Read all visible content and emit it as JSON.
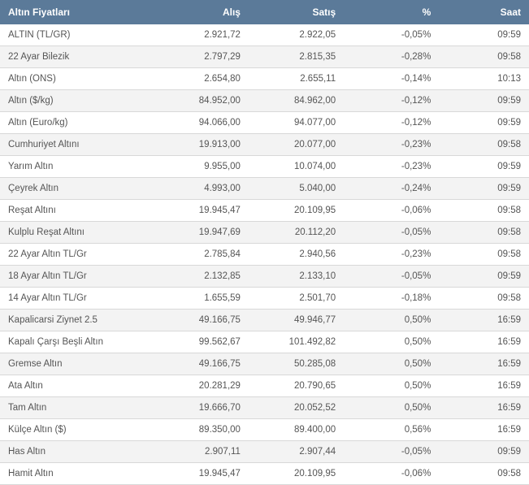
{
  "table": {
    "header_bg": "#5b7a99",
    "header_fg": "#ffffff",
    "row_odd_bg": "#ffffff",
    "row_even_bg": "#f3f3f3",
    "border_color": "#d8d8d8",
    "text_color": "#555555",
    "font_size": 12,
    "columns": [
      {
        "key": "name",
        "label": "Altın Fiyatları",
        "align": "left"
      },
      {
        "key": "alis",
        "label": "Alış",
        "align": "right"
      },
      {
        "key": "satis",
        "label": "Satış",
        "align": "right"
      },
      {
        "key": "pct",
        "label": "%",
        "align": "right"
      },
      {
        "key": "saat",
        "label": "Saat",
        "align": "right"
      }
    ],
    "rows": [
      {
        "name": "ALTIN (TL/GR)",
        "alis": "2.921,72",
        "satis": "2.922,05",
        "pct": "-0,05%",
        "saat": "09:59"
      },
      {
        "name": "22 Ayar Bilezik",
        "alis": "2.797,29",
        "satis": "2.815,35",
        "pct": "-0,28%",
        "saat": "09:58"
      },
      {
        "name": "Altın (ONS)",
        "alis": "2.654,80",
        "satis": "2.655,11",
        "pct": "-0,14%",
        "saat": "10:13"
      },
      {
        "name": "Altın ($/kg)",
        "alis": "84.952,00",
        "satis": "84.962,00",
        "pct": "-0,12%",
        "saat": "09:59"
      },
      {
        "name": "Altın (Euro/kg)",
        "alis": "94.066,00",
        "satis": "94.077,00",
        "pct": "-0,12%",
        "saat": "09:59"
      },
      {
        "name": "Cumhuriyet Altını",
        "alis": "19.913,00",
        "satis": "20.077,00",
        "pct": "-0,23%",
        "saat": "09:58"
      },
      {
        "name": "Yarım Altın",
        "alis": "9.955,00",
        "satis": "10.074,00",
        "pct": "-0,23%",
        "saat": "09:59"
      },
      {
        "name": "Çeyrek Altın",
        "alis": "4.993,00",
        "satis": "5.040,00",
        "pct": "-0,24%",
        "saat": "09:59"
      },
      {
        "name": "Reşat Altını",
        "alis": "19.945,47",
        "satis": "20.109,95",
        "pct": "-0,06%",
        "saat": "09:58"
      },
      {
        "name": "Kulplu Reşat Altını",
        "alis": "19.947,69",
        "satis": "20.112,20",
        "pct": "-0,05%",
        "saat": "09:58"
      },
      {
        "name": "22 Ayar Altın TL/Gr",
        "alis": "2.785,84",
        "satis": "2.940,56",
        "pct": "-0,23%",
        "saat": "09:58"
      },
      {
        "name": "18 Ayar Altın TL/Gr",
        "alis": "2.132,85",
        "satis": "2.133,10",
        "pct": "-0,05%",
        "saat": "09:59"
      },
      {
        "name": "14 Ayar Altın TL/Gr",
        "alis": "1.655,59",
        "satis": "2.501,70",
        "pct": "-0,18%",
        "saat": "09:58"
      },
      {
        "name": "Kapalicarsi Ziynet 2.5",
        "alis": "49.166,75",
        "satis": "49.946,77",
        "pct": "0,50%",
        "saat": "16:59"
      },
      {
        "name": "Kapalı Çarşı Beşli Altın",
        "alis": "99.562,67",
        "satis": "101.492,82",
        "pct": "0,50%",
        "saat": "16:59"
      },
      {
        "name": "Gremse Altın",
        "alis": "49.166,75",
        "satis": "50.285,08",
        "pct": "0,50%",
        "saat": "16:59"
      },
      {
        "name": "Ata Altın",
        "alis": "20.281,29",
        "satis": "20.790,65",
        "pct": "0,50%",
        "saat": "16:59"
      },
      {
        "name": "Tam Altın",
        "alis": "19.666,70",
        "satis": "20.052,52",
        "pct": "0,50%",
        "saat": "16:59"
      },
      {
        "name": "Külçe Altın ($)",
        "alis": "89.350,00",
        "satis": "89.400,00",
        "pct": "0,56%",
        "saat": "16:59"
      },
      {
        "name": "Has Altın",
        "alis": "2.907,11",
        "satis": "2.907,44",
        "pct": "-0,05%",
        "saat": "09:59"
      },
      {
        "name": "Hamit Altın",
        "alis": "19.945,47",
        "satis": "20.109,95",
        "pct": "-0,06%",
        "saat": "09:58"
      }
    ]
  }
}
